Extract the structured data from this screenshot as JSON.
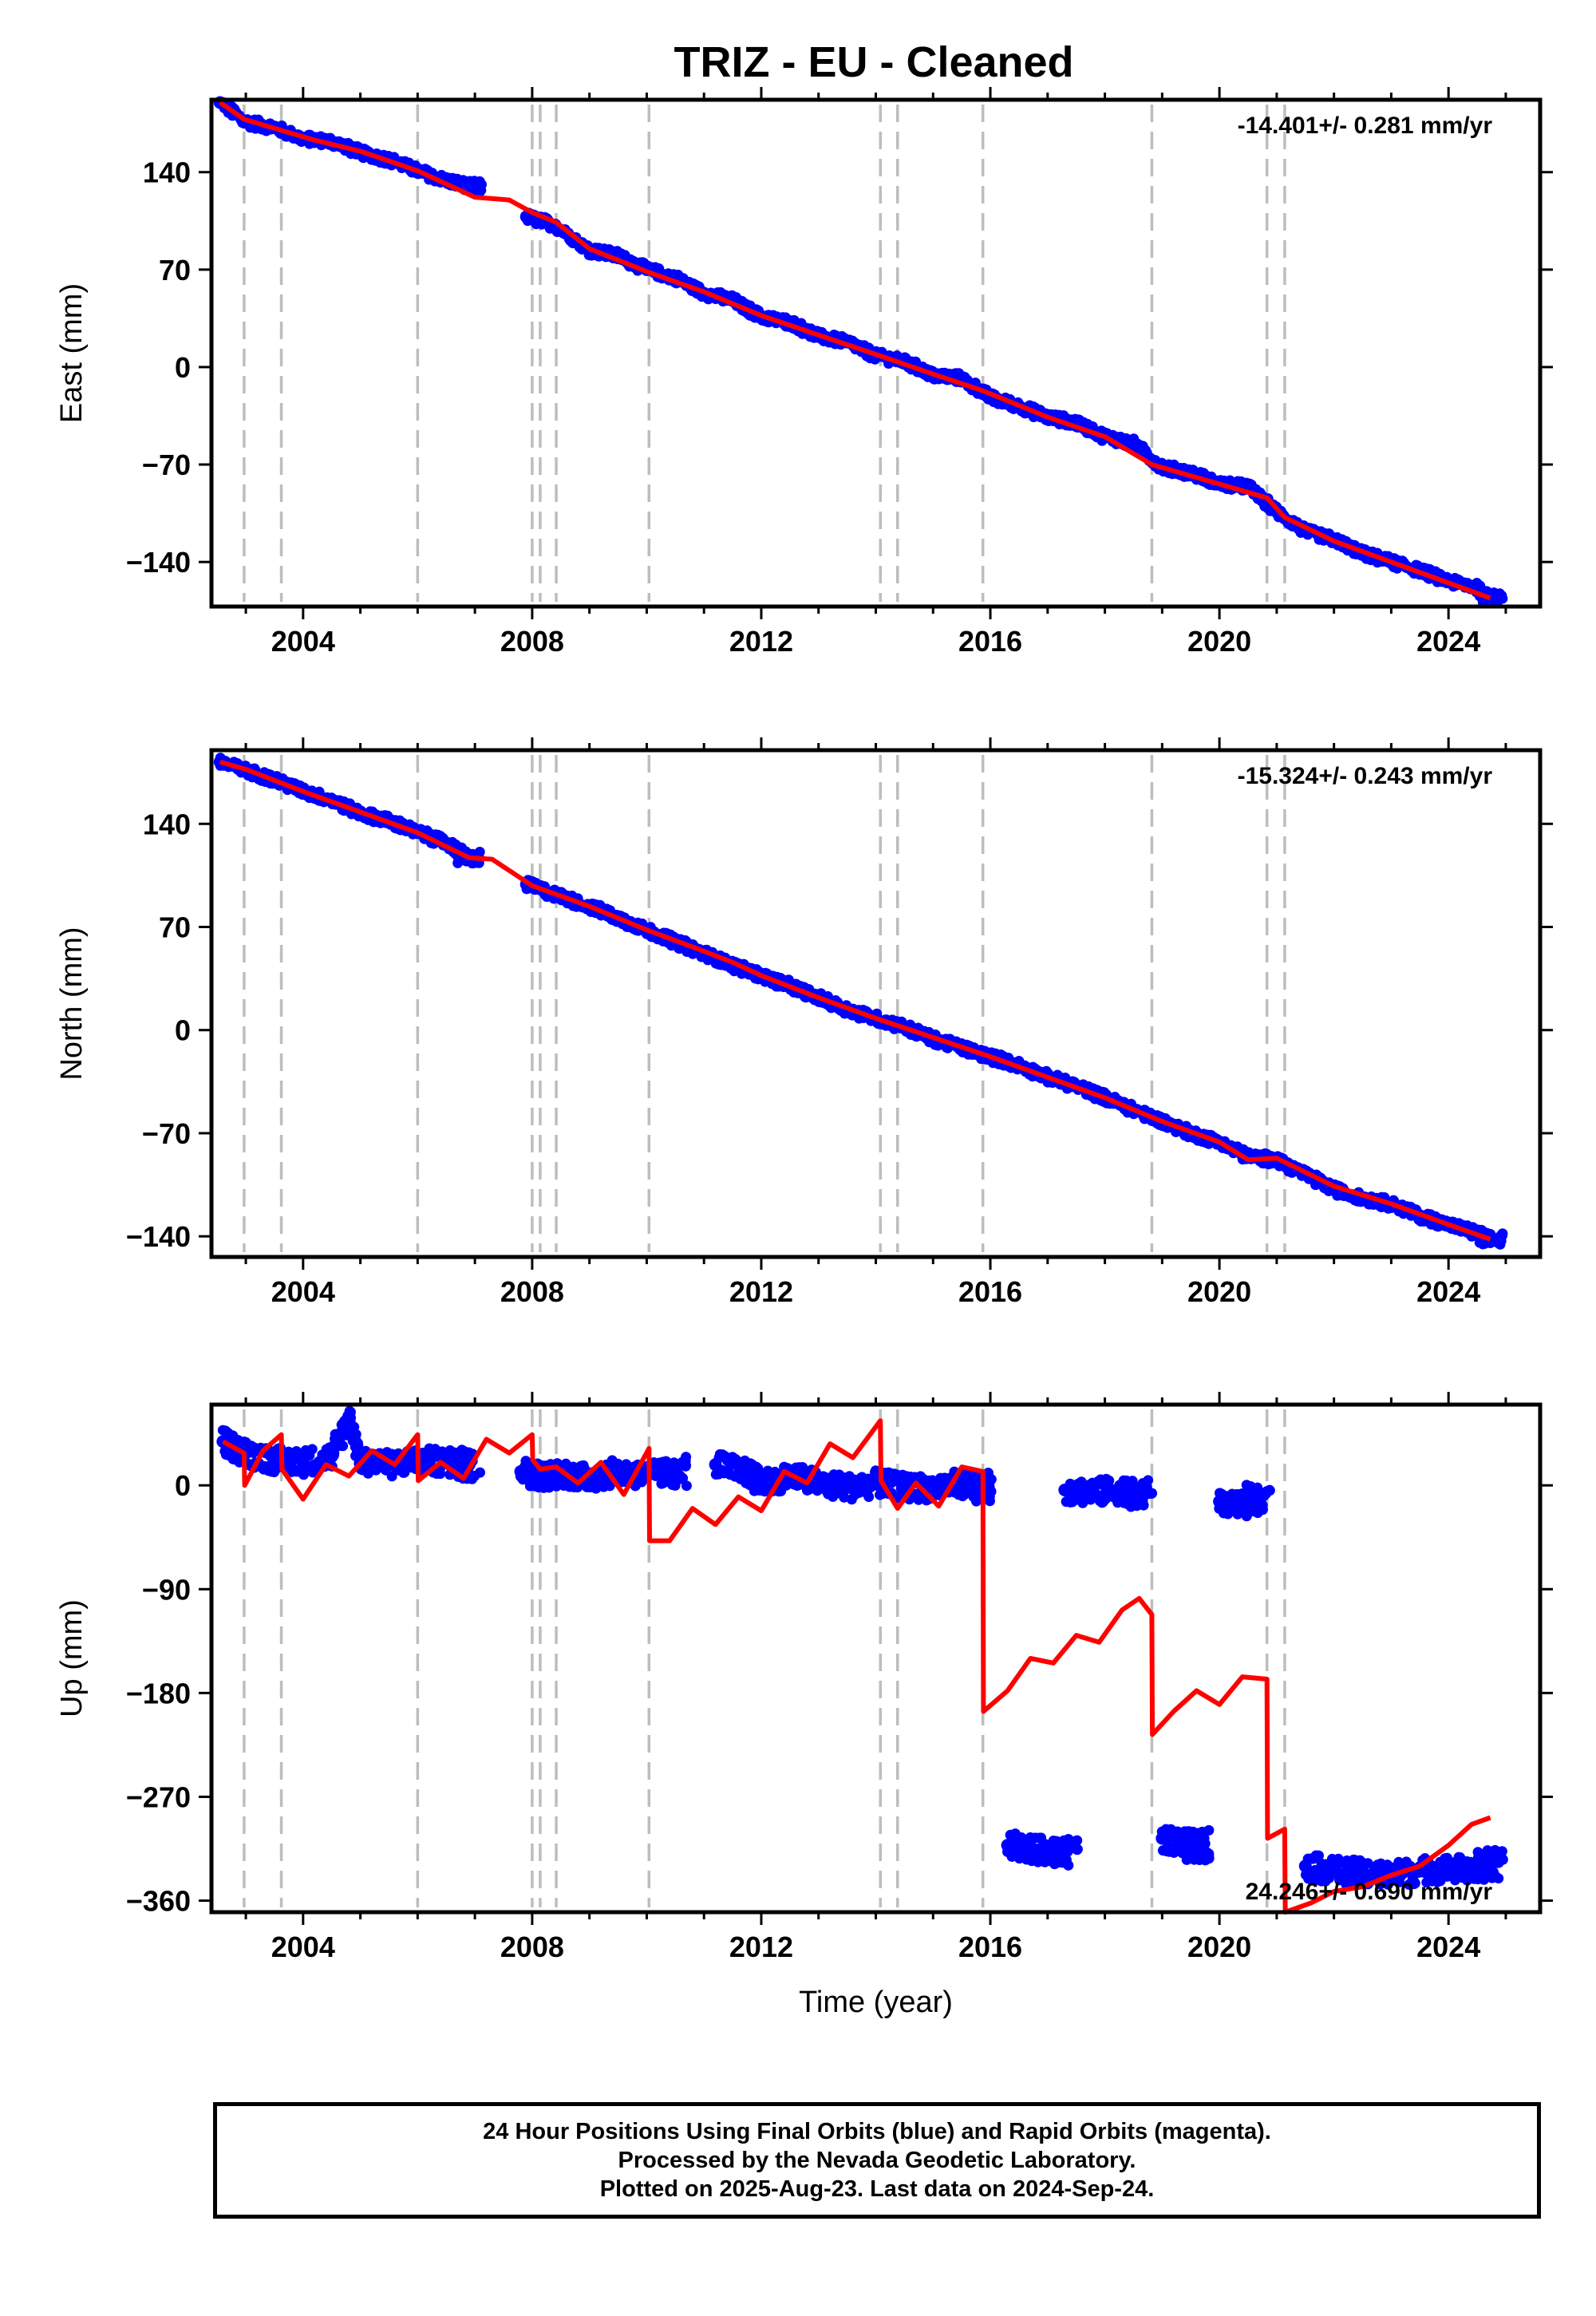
{
  "title": "TRIZ  - EU - Cleaned",
  "colors": {
    "data": "#0000ff",
    "fit": "#ff0000",
    "event": "#bdbdbd",
    "frame": "#000000"
  },
  "event_lines": [
    2002.97,
    2003.62,
    2006.0,
    2008.0,
    2008.14,
    2008.42,
    2010.04,
    2014.08,
    2014.38,
    2015.87,
    2018.82,
    2020.83,
    2021.14
  ],
  "chart_data": [
    {
      "type": "scatter",
      "name": "east",
      "ylabel": "East (mm)",
      "xlabel": "",
      "rate_label": "-14.401+/- 0.281 mm/yr",
      "xlim": [
        2002.4,
        2025.6
      ],
      "ylim": [
        -172,
        192
      ],
      "x_ticks": [
        "2004",
        "2008",
        "2012",
        "2016",
        "2020",
        "2024"
      ],
      "x_tick_values": [
        2004,
        2008,
        2012,
        2016,
        2020,
        2024
      ],
      "y_ticks": [
        "140",
        "70",
        "0",
        "−70",
        "−140"
      ],
      "y_tick_values": [
        140,
        70,
        0,
        -70,
        -140
      ],
      "observations": [
        {
          "x": 2002.55,
          "y": 190
        },
        {
          "x": 2003.0,
          "y": 176
        },
        {
          "x": 2003.5,
          "y": 172
        },
        {
          "x": 2004.0,
          "y": 164
        },
        {
          "x": 2004.5,
          "y": 162
        },
        {
          "x": 2005.0,
          "y": 154
        },
        {
          "x": 2005.5,
          "y": 149
        },
        {
          "x": 2006.0,
          "y": 141
        },
        {
          "x": 2006.5,
          "y": 134
        },
        {
          "x": 2006.9,
          "y": 130
        },
        {
          "x": 2007.9,
          "y": 108
        },
        {
          "x": 2008.4,
          "y": 102
        },
        {
          "x": 2009.0,
          "y": 84
        },
        {
          "x": 2009.5,
          "y": 80
        },
        {
          "x": 2010.0,
          "y": 70
        },
        {
          "x": 2010.5,
          "y": 64
        },
        {
          "x": 2011.0,
          "y": 53
        },
        {
          "x": 2011.5,
          "y": 48
        },
        {
          "x": 2012.0,
          "y": 36
        },
        {
          "x": 2012.5,
          "y": 32
        },
        {
          "x": 2013.0,
          "y": 22
        },
        {
          "x": 2013.5,
          "y": 18
        },
        {
          "x": 2014.0,
          "y": 8
        },
        {
          "x": 2014.5,
          "y": 4
        },
        {
          "x": 2015.0,
          "y": -6
        },
        {
          "x": 2015.5,
          "y": -8
        },
        {
          "x": 2016.0,
          "y": -22
        },
        {
          "x": 2016.5,
          "y": -28
        },
        {
          "x": 2017.0,
          "y": -36
        },
        {
          "x": 2017.5,
          "y": -40
        },
        {
          "x": 2018.0,
          "y": -50
        },
        {
          "x": 2018.5,
          "y": -55
        },
        {
          "x": 2019.0,
          "y": -72
        },
        {
          "x": 2019.5,
          "y": -76
        },
        {
          "x": 2020.0,
          "y": -84
        },
        {
          "x": 2020.5,
          "y": -86
        },
        {
          "x": 2021.0,
          "y": -104
        },
        {
          "x": 2021.5,
          "y": -118
        },
        {
          "x": 2022.0,
          "y": -124
        },
        {
          "x": 2022.5,
          "y": -134
        },
        {
          "x": 2023.0,
          "y": -140
        },
        {
          "x": 2023.5,
          "y": -146
        },
        {
          "x": 2024.0,
          "y": -154
        },
        {
          "x": 2024.5,
          "y": -158
        },
        {
          "x": 2024.73,
          "y": -166
        }
      ],
      "model": [
        {
          "x": 2002.55,
          "y": 190
        },
        {
          "x": 2002.97,
          "y": 178
        },
        {
          "x": 2003.62,
          "y": 170
        },
        {
          "x": 2004.2,
          "y": 163
        },
        {
          "x": 2005.0,
          "y": 155
        },
        {
          "x": 2006.0,
          "y": 141
        },
        {
          "x": 2007.0,
          "y": 122
        },
        {
          "x": 2007.6,
          "y": 120
        },
        {
          "x": 2008.0,
          "y": 111
        },
        {
          "x": 2008.42,
          "y": 104
        },
        {
          "x": 2009.0,
          "y": 85
        },
        {
          "x": 2010.04,
          "y": 68
        },
        {
          "x": 2011.0,
          "y": 54
        },
        {
          "x": 2012.0,
          "y": 37
        },
        {
          "x": 2013.0,
          "y": 23
        },
        {
          "x": 2014.08,
          "y": 8
        },
        {
          "x": 2015.0,
          "y": -5
        },
        {
          "x": 2015.87,
          "y": -17
        },
        {
          "x": 2017.0,
          "y": -36
        },
        {
          "x": 2018.0,
          "y": -50
        },
        {
          "x": 2018.82,
          "y": -70
        },
        {
          "x": 2020.0,
          "y": -84
        },
        {
          "x": 2020.83,
          "y": -94
        },
        {
          "x": 2021.14,
          "y": -108
        },
        {
          "x": 2022.0,
          "y": -125
        },
        {
          "x": 2023.0,
          "y": -140
        },
        {
          "x": 2024.0,
          "y": -155
        },
        {
          "x": 2024.73,
          "y": -166
        }
      ]
    },
    {
      "type": "scatter",
      "name": "north",
      "ylabel": "North (mm)",
      "xlabel": "",
      "rate_label": "-15.324+/- 0.243 mm/yr",
      "xlim": [
        2002.4,
        2025.6
      ],
      "ylim": [
        -154,
        190
      ],
      "x_ticks": [
        "2004",
        "2008",
        "2012",
        "2016",
        "2020",
        "2024"
      ],
      "x_tick_values": [
        2004,
        2008,
        2012,
        2016,
        2020,
        2024
      ],
      "y_ticks": [
        "140",
        "70",
        "0",
        "−70",
        "−140"
      ],
      "y_tick_values": [
        140,
        70,
        0,
        -70,
        -140
      ],
      "observations": [
        {
          "x": 2002.55,
          "y": 182
        },
        {
          "x": 2003.0,
          "y": 176
        },
        {
          "x": 2003.5,
          "y": 170
        },
        {
          "x": 2004.0,
          "y": 162
        },
        {
          "x": 2004.5,
          "y": 156
        },
        {
          "x": 2005.0,
          "y": 147
        },
        {
          "x": 2005.5,
          "y": 142
        },
        {
          "x": 2006.0,
          "y": 134
        },
        {
          "x": 2006.5,
          "y": 127
        },
        {
          "x": 2006.9,
          "y": 117
        },
        {
          "x": 2007.9,
          "y": 99
        },
        {
          "x": 2008.4,
          "y": 92
        },
        {
          "x": 2009.0,
          "y": 84
        },
        {
          "x": 2009.5,
          "y": 76
        },
        {
          "x": 2010.0,
          "y": 68
        },
        {
          "x": 2010.5,
          "y": 60
        },
        {
          "x": 2011.0,
          "y": 52
        },
        {
          "x": 2011.5,
          "y": 44
        },
        {
          "x": 2012.0,
          "y": 37
        },
        {
          "x": 2012.5,
          "y": 30
        },
        {
          "x": 2013.0,
          "y": 22
        },
        {
          "x": 2013.5,
          "y": 14
        },
        {
          "x": 2014.0,
          "y": 8
        },
        {
          "x": 2014.5,
          "y": 2
        },
        {
          "x": 2015.0,
          "y": -6
        },
        {
          "x": 2015.5,
          "y": -12
        },
        {
          "x": 2016.0,
          "y": -18
        },
        {
          "x": 2016.5,
          "y": -24
        },
        {
          "x": 2017.0,
          "y": -32
        },
        {
          "x": 2017.5,
          "y": -38
        },
        {
          "x": 2018.0,
          "y": -46
        },
        {
          "x": 2018.5,
          "y": -54
        },
        {
          "x": 2019.0,
          "y": -62
        },
        {
          "x": 2019.5,
          "y": -70
        },
        {
          "x": 2020.0,
          "y": -76
        },
        {
          "x": 2020.5,
          "y": -86
        },
        {
          "x": 2021.0,
          "y": -88
        },
        {
          "x": 2021.5,
          "y": -98
        },
        {
          "x": 2022.0,
          "y": -108
        },
        {
          "x": 2022.5,
          "y": -114
        },
        {
          "x": 2023.0,
          "y": -118
        },
        {
          "x": 2023.5,
          "y": -126
        },
        {
          "x": 2024.0,
          "y": -132
        },
        {
          "x": 2024.5,
          "y": -138
        },
        {
          "x": 2024.73,
          "y": -142
        }
      ],
      "model": [
        {
          "x": 2002.55,
          "y": 182
        },
        {
          "x": 2003.0,
          "y": 177
        },
        {
          "x": 2004.0,
          "y": 162
        },
        {
          "x": 2005.0,
          "y": 148
        },
        {
          "x": 2006.0,
          "y": 134
        },
        {
          "x": 2006.9,
          "y": 117
        },
        {
          "x": 2007.3,
          "y": 116
        },
        {
          "x": 2008.0,
          "y": 98
        },
        {
          "x": 2009.0,
          "y": 84
        },
        {
          "x": 2010.0,
          "y": 68
        },
        {
          "x": 2010.9,
          "y": 55
        },
        {
          "x": 2011.5,
          "y": 46
        },
        {
          "x": 2012.0,
          "y": 37
        },
        {
          "x": 2013.0,
          "y": 22
        },
        {
          "x": 2014.0,
          "y": 8
        },
        {
          "x": 2015.0,
          "y": -5
        },
        {
          "x": 2016.0,
          "y": -18
        },
        {
          "x": 2017.0,
          "y": -32
        },
        {
          "x": 2018.0,
          "y": -46
        },
        {
          "x": 2019.0,
          "y": -62
        },
        {
          "x": 2020.0,
          "y": -76
        },
        {
          "x": 2020.5,
          "y": -88
        },
        {
          "x": 2021.0,
          "y": -87
        },
        {
          "x": 2022.0,
          "y": -106
        },
        {
          "x": 2023.0,
          "y": -118
        },
        {
          "x": 2024.0,
          "y": -132
        },
        {
          "x": 2024.73,
          "y": -142
        }
      ]
    },
    {
      "type": "scatter",
      "name": "up",
      "ylabel": "Up (mm)",
      "xlabel": "Time (year)",
      "rate_label": "24.246+/- 0.690 mm/yr",
      "xlim": [
        2002.4,
        2025.6
      ],
      "ylim": [
        -370,
        70
      ],
      "x_ticks": [
        "2004",
        "2008",
        "2012",
        "2016",
        "2020",
        "2024"
      ],
      "x_tick_values": [
        2004,
        2008,
        2012,
        2016,
        2020,
        2024
      ],
      "y_ticks": [
        "0",
        "−90",
        "−180",
        "−270",
        "−360"
      ],
      "y_tick_values": [
        0,
        -90,
        -180,
        -270,
        -360
      ],
      "observations": [
        {
          "x": 2002.6,
          "y": 38
        },
        {
          "x": 2003.0,
          "y": 28
        },
        {
          "x": 2003.5,
          "y": 22
        },
        {
          "x": 2004.0,
          "y": 20
        },
        {
          "x": 2004.5,
          "y": 25
        },
        {
          "x": 2004.8,
          "y": 60
        },
        {
          "x": 2005.0,
          "y": 22
        },
        {
          "x": 2005.5,
          "y": 18
        },
        {
          "x": 2006.0,
          "y": 22
        },
        {
          "x": 2006.5,
          "y": 20
        },
        {
          "x": 2006.9,
          "y": 18
        },
        {
          "x": 2007.8,
          "y": 12
        },
        {
          "x": 2008.2,
          "y": 8
        },
        {
          "x": 2008.6,
          "y": 10
        },
        {
          "x": 2009.0,
          "y": 6
        },
        {
          "x": 2009.5,
          "y": 12
        },
        {
          "x": 2010.0,
          "y": 8
        },
        {
          "x": 2010.5,
          "y": 12
        },
        {
          "x": 2011.2,
          "y": 18
        },
        {
          "x": 2011.8,
          "y": 10
        },
        {
          "x": 2012.0,
          "y": 2
        },
        {
          "x": 2012.5,
          "y": 8
        },
        {
          "x": 2013.0,
          "y": 2
        },
        {
          "x": 2013.5,
          "y": -2
        },
        {
          "x": 2014.0,
          "y": 2
        },
        {
          "x": 2014.5,
          "y": -2
        },
        {
          "x": 2015.0,
          "y": -2
        },
        {
          "x": 2015.5,
          "y": 2
        },
        {
          "x": 2015.8,
          "y": -2
        },
        {
          "x": 2016.3,
          "y": -312
        },
        {
          "x": 2016.8,
          "y": -316
        },
        {
          "x": 2017.3,
          "y": -318
        },
        {
          "x": 2017.3,
          "y": -4
        },
        {
          "x": 2017.8,
          "y": -6
        },
        {
          "x": 2018.3,
          "y": -4
        },
        {
          "x": 2018.6,
          "y": -8
        },
        {
          "x": 2019.0,
          "y": -306
        },
        {
          "x": 2019.6,
          "y": -312
        },
        {
          "x": 2020.0,
          "y": -14
        },
        {
          "x": 2020.4,
          "y": -18
        },
        {
          "x": 2020.7,
          "y": -12
        },
        {
          "x": 2021.5,
          "y": -330
        },
        {
          "x": 2022.0,
          "y": -334
        },
        {
          "x": 2022.5,
          "y": -336
        },
        {
          "x": 2023.0,
          "y": -338
        },
        {
          "x": 2023.5,
          "y": -334
        },
        {
          "x": 2024.0,
          "y": -332
        },
        {
          "x": 2024.5,
          "y": -334
        },
        {
          "x": 2024.73,
          "y": -328
        }
      ],
      "model": [
        {
          "x": 2002.6,
          "y": 38
        },
        {
          "x": 2002.97,
          "y": 28
        },
        {
          "x": 2002.98,
          "y": 0
        },
        {
          "x": 2003.3,
          "y": 30
        },
        {
          "x": 2003.62,
          "y": 44
        },
        {
          "x": 2003.63,
          "y": 14
        },
        {
          "x": 2004.0,
          "y": -12
        },
        {
          "x": 2004.4,
          "y": 18
        },
        {
          "x": 2004.8,
          "y": 8
        },
        {
          "x": 2005.2,
          "y": 30
        },
        {
          "x": 2005.6,
          "y": 18
        },
        {
          "x": 2006.0,
          "y": 44
        },
        {
          "x": 2006.01,
          "y": 4
        },
        {
          "x": 2006.4,
          "y": 20
        },
        {
          "x": 2006.8,
          "y": 6
        },
        {
          "x": 2007.2,
          "y": 40
        },
        {
          "x": 2007.6,
          "y": 28
        },
        {
          "x": 2008.0,
          "y": 44
        },
        {
          "x": 2008.01,
          "y": 22
        },
        {
          "x": 2008.14,
          "y": 14
        },
        {
          "x": 2008.42,
          "y": 16
        },
        {
          "x": 2008.8,
          "y": 2
        },
        {
          "x": 2009.2,
          "y": 20
        },
        {
          "x": 2009.6,
          "y": -8
        },
        {
          "x": 2010.04,
          "y": 32
        },
        {
          "x": 2010.05,
          "y": -48
        },
        {
          "x": 2010.4,
          "y": -48
        },
        {
          "x": 2010.8,
          "y": -20
        },
        {
          "x": 2011.2,
          "y": -34
        },
        {
          "x": 2011.6,
          "y": -10
        },
        {
          "x": 2012.0,
          "y": -22
        },
        {
          "x": 2012.4,
          "y": 12
        },
        {
          "x": 2012.8,
          "y": 2
        },
        {
          "x": 2013.2,
          "y": 36
        },
        {
          "x": 2013.6,
          "y": 24
        },
        {
          "x": 2014.08,
          "y": 56
        },
        {
          "x": 2014.09,
          "y": 4
        },
        {
          "x": 2014.38,
          "y": -20
        },
        {
          "x": 2014.7,
          "y": 2
        },
        {
          "x": 2015.1,
          "y": -18
        },
        {
          "x": 2015.5,
          "y": 16
        },
        {
          "x": 2015.87,
          "y": 12
        },
        {
          "x": 2015.88,
          "y": -196
        },
        {
          "x": 2016.3,
          "y": -178
        },
        {
          "x": 2016.7,
          "y": -150
        },
        {
          "x": 2017.1,
          "y": -154
        },
        {
          "x": 2017.5,
          "y": -130
        },
        {
          "x": 2017.9,
          "y": -136
        },
        {
          "x": 2018.3,
          "y": -108
        },
        {
          "x": 2018.6,
          "y": -98
        },
        {
          "x": 2018.82,
          "y": -112
        },
        {
          "x": 2018.83,
          "y": -216
        },
        {
          "x": 2019.2,
          "y": -196
        },
        {
          "x": 2019.6,
          "y": -178
        },
        {
          "x": 2020.0,
          "y": -190
        },
        {
          "x": 2020.4,
          "y": -166
        },
        {
          "x": 2020.83,
          "y": -168
        },
        {
          "x": 2020.84,
          "y": -306
        },
        {
          "x": 2021.14,
          "y": -298
        },
        {
          "x": 2021.15,
          "y": -370
        },
        {
          "x": 2021.6,
          "y": -362
        },
        {
          "x": 2022.0,
          "y": -352
        },
        {
          "x": 2022.5,
          "y": -348
        },
        {
          "x": 2023.0,
          "y": -338
        },
        {
          "x": 2023.5,
          "y": -330
        },
        {
          "x": 2024.0,
          "y": -312
        },
        {
          "x": 2024.4,
          "y": -294
        },
        {
          "x": 2024.73,
          "y": -288
        }
      ]
    }
  ],
  "footer": {
    "line1": "24 Hour Positions Using Final Orbits (blue) and Rapid Orbits (magenta).",
    "line2": "Processed by the Nevada Geodetic Laboratory.",
    "line3": "Plotted on 2025-Aug-23. Last data on 2024-Sep-24."
  }
}
